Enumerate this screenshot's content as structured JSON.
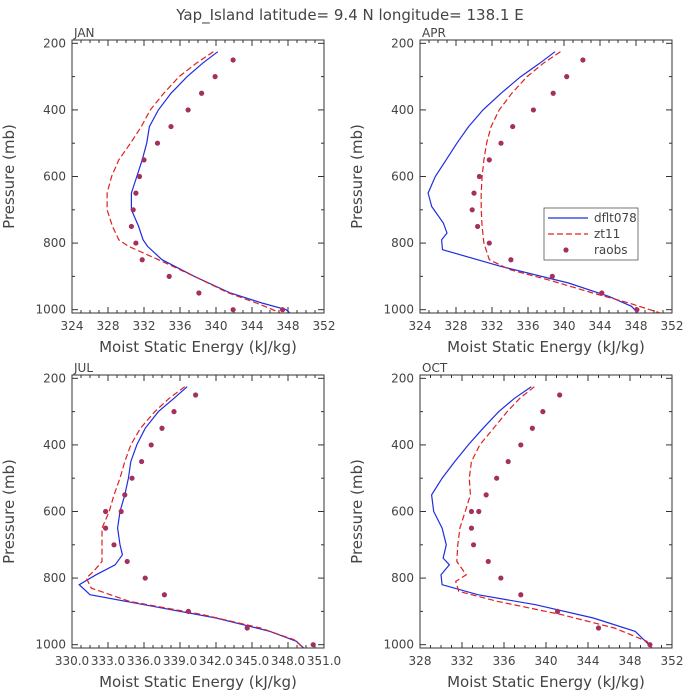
{
  "title": "Yap_Island  latitude= 9.4 N longitude= 138.1 E",
  "colors": {
    "dflt078": "#1f2de0",
    "zt11": "#e02020",
    "raobs": "#a33060",
    "axis": "#333333"
  },
  "legend": {
    "items": [
      "dflt078",
      "zt11",
      "raobs"
    ]
  },
  "chart_data": [
    {
      "type": "line",
      "panel": "JAN",
      "title": "JAN",
      "xlabel": "Moist Static Energy (kJ/kg)",
      "ylabel": "Pressure (mb)",
      "xlim": [
        324,
        352
      ],
      "ylim": [
        1010,
        190
      ],
      "xticks": [
        "324",
        "328",
        "332",
        "336",
        "340",
        "344",
        "348",
        "352"
      ],
      "xtick_values": [
        324,
        328,
        332,
        336,
        340,
        344,
        348,
        352
      ],
      "yticks": [
        "200",
        "400",
        "600",
        "800",
        "1000"
      ],
      "ytick_values": [
        200,
        400,
        600,
        800,
        1000
      ],
      "series": [
        {
          "name": "dflt078",
          "x": [
            340.2,
            338.5,
            336.8,
            335.0,
            333.6,
            332.6,
            332.3,
            331.8,
            331.2,
            330.6,
            330.6,
            331.4,
            331.9,
            332.4,
            334.0,
            337.6,
            341.6,
            345.1,
            347.8,
            348.2
          ],
          "y": [
            225,
            260,
            300,
            350,
            400,
            450,
            500,
            550,
            600,
            650,
            700,
            750,
            790,
            810,
            850,
            900,
            950,
            980,
            1000,
            1010
          ]
        },
        {
          "name": "zt11",
          "x": [
            339.7,
            337.8,
            335.9,
            334.2,
            332.7,
            331.7,
            330.5,
            329.2,
            328.4,
            327.9,
            327.9,
            328.5,
            329.2,
            330.3,
            333.6,
            337.6,
            341.4,
            344.5,
            347.2
          ],
          "y": [
            225,
            260,
            300,
            350,
            400,
            450,
            500,
            550,
            600,
            650,
            700,
            750,
            790,
            810,
            850,
            900,
            950,
            980,
            1010
          ]
        },
        {
          "name": "raobs",
          "x": [
            341.9,
            339.9,
            338.4,
            336.9,
            335.0,
            333.5,
            332.0,
            331.5,
            331.1,
            330.8,
            330.6,
            331.1,
            331.8,
            334.8,
            338.1,
            341.9,
            347.4
          ],
          "y": [
            250,
            300,
            350,
            400,
            450,
            500,
            550,
            600,
            650,
            700,
            750,
            800,
            850,
            900,
            950,
            1000,
            1000
          ]
        }
      ]
    },
    {
      "type": "line",
      "panel": "APR",
      "title": "APR",
      "xlabel": "Moist Static Energy (kJ/kg)",
      "ylabel": "Pressure (mb)",
      "xlim": [
        324,
        352
      ],
      "ylim": [
        1010,
        190
      ],
      "xticks": [
        "324",
        "328",
        "332",
        "336",
        "340",
        "344",
        "348",
        "352"
      ],
      "xtick_values": [
        324,
        328,
        332,
        336,
        340,
        344,
        348,
        352
      ],
      "yticks": [
        "200",
        "400",
        "600",
        "800",
        "1000"
      ],
      "ytick_values": [
        200,
        400,
        600,
        800,
        1000
      ],
      "series": [
        {
          "name": "dflt078",
          "x": [
            339.0,
            337.3,
            335.2,
            333.0,
            331.0,
            329.4,
            328.1,
            326.9,
            325.7,
            324.9,
            325.3,
            326.6,
            327.0,
            326.4,
            326.5,
            333.0,
            340.5,
            345.0,
            347.5,
            348.2
          ],
          "y": [
            225,
            260,
            300,
            350,
            400,
            450,
            500,
            550,
            600,
            650,
            690,
            740,
            770,
            790,
            820,
            870,
            920,
            960,
            990,
            1010
          ]
        },
        {
          "name": "zt11",
          "x": [
            339.6,
            337.7,
            335.9,
            334.2,
            332.8,
            331.9,
            331.4,
            331.1,
            330.9,
            330.8,
            330.8,
            330.9,
            331.1,
            331.7,
            334.0,
            338.2,
            343.2,
            347.2,
            350.7
          ],
          "y": [
            225,
            260,
            300,
            350,
            400,
            450,
            500,
            550,
            600,
            650,
            700,
            750,
            800,
            850,
            880,
            910,
            950,
            980,
            1010
          ]
        },
        {
          "name": "raobs",
          "x": [
            342.1,
            340.3,
            338.8,
            336.6,
            334.3,
            333.0,
            331.7,
            330.6,
            330.0,
            329.8,
            330.4,
            331.7,
            334.1,
            338.7,
            344.2,
            348.1
          ],
          "y": [
            250,
            300,
            350,
            400,
            450,
            500,
            550,
            600,
            650,
            700,
            750,
            800,
            850,
            900,
            950,
            1000
          ]
        }
      ]
    },
    {
      "type": "line",
      "panel": "JUL",
      "title": "JUL",
      "xlabel": "Moist Static Energy (kJ/kg)",
      "ylabel": "Pressure (mb)",
      "xlim": [
        330.0,
        351.0
      ],
      "ylim": [
        1010,
        190
      ],
      "xticks": [
        "330.0",
        "333.0",
        "336.0",
        "339.0",
        "342.0",
        "345.0",
        "348.0",
        "351.0"
      ],
      "xtick_values": [
        330.0,
        333.0,
        336.0,
        339.0,
        342.0,
        345.0,
        348.0,
        351.0
      ],
      "yticks": [
        "200",
        "400",
        "600",
        "800",
        "1000"
      ],
      "ytick_values": [
        200,
        400,
        600,
        800,
        1000
      ],
      "series": [
        {
          "name": "dflt078",
          "x": [
            339.6,
            338.5,
            337.2,
            336.1,
            335.4,
            334.9,
            334.7,
            334.4,
            334.0,
            333.8,
            334.0,
            334.2,
            333.6,
            332.0,
            330.6,
            331.5,
            336.0,
            342.0,
            346.5,
            348.7,
            349.3
          ],
          "y": [
            225,
            260,
            300,
            350,
            400,
            450,
            500,
            550,
            600,
            650,
            700,
            730,
            760,
            790,
            820,
            850,
            880,
            920,
            960,
            990,
            1010
          ]
        },
        {
          "name": "zt11",
          "x": [
            339.4,
            338.1,
            336.9,
            335.7,
            334.9,
            334.4,
            334.0,
            333.5,
            333.1,
            332.5,
            332.5,
            332.5,
            331.8,
            331.2,
            331.6,
            334.8,
            340.9,
            345.7,
            348.5,
            349.3
          ],
          "y": [
            225,
            260,
            300,
            350,
            400,
            450,
            500,
            550,
            600,
            650,
            700,
            750,
            780,
            800,
            830,
            870,
            910,
            950,
            985,
            1010
          ]
        },
        {
          "name": "raobs",
          "x": [
            340.3,
            338.5,
            337.5,
            336.6,
            335.8,
            335.0,
            334.4,
            334.1,
            332.8,
            332.8,
            333.5,
            334.6,
            336.1,
            337.7,
            339.7,
            344.6,
            350.1
          ],
          "y": [
            250,
            300,
            350,
            400,
            450,
            500,
            550,
            600,
            600,
            650,
            700,
            750,
            800,
            850,
            900,
            950,
            1000
          ]
        }
      ]
    },
    {
      "type": "line",
      "panel": "OCT",
      "title": "OCT",
      "xlabel": "Moist Static Energy (kJ/kg)",
      "ylabel": "Pressure (mb)",
      "xlim": [
        328,
        352
      ],
      "ylim": [
        1010,
        190
      ],
      "xticks": [
        "328",
        "332",
        "336",
        "340",
        "344",
        "348",
        "352"
      ],
      "xtick_values": [
        328,
        332,
        336,
        340,
        344,
        348,
        352
      ],
      "yticks": [
        "200",
        "400",
        "600",
        "800",
        "1000"
      ],
      "ytick_values": [
        200,
        400,
        600,
        800,
        1000
      ],
      "series": [
        {
          "name": "dflt078",
          "x": [
            338.6,
            337.0,
            335.5,
            334.0,
            332.6,
            331.3,
            330.1,
            329.1,
            329.3,
            330.1,
            330.5,
            330.2,
            330.8,
            330.0,
            330.1,
            333.5,
            339.0,
            344.5,
            348.5,
            349.8
          ],
          "y": [
            225,
            260,
            300,
            350,
            400,
            450,
            500,
            550,
            600,
            650,
            700,
            740,
            760,
            790,
            820,
            850,
            880,
            920,
            960,
            1000
          ]
        },
        {
          "name": "zt11",
          "x": [
            338.9,
            337.5,
            336.3,
            335.0,
            333.7,
            332.9,
            332.7,
            332.8,
            332.3,
            331.8,
            331.6,
            331.5,
            332.4,
            331.4,
            331.7,
            335.4,
            341.5,
            346.5,
            349.6,
            350.1
          ],
          "y": [
            225,
            260,
            300,
            350,
            400,
            450,
            500,
            550,
            600,
            650,
            700,
            750,
            790,
            810,
            840,
            870,
            910,
            950,
            990,
            1010
          ]
        },
        {
          "name": "raobs",
          "x": [
            341.3,
            339.7,
            338.7,
            337.6,
            336.4,
            335.3,
            334.3,
            333.6,
            332.9,
            332.9,
            333.1,
            334.5,
            335.7,
            337.6,
            341.1,
            345.0,
            349.9
          ],
          "y": [
            250,
            300,
            350,
            400,
            450,
            500,
            550,
            600,
            600,
            650,
            700,
            750,
            800,
            850,
            900,
            950,
            1000
          ]
        }
      ]
    }
  ]
}
